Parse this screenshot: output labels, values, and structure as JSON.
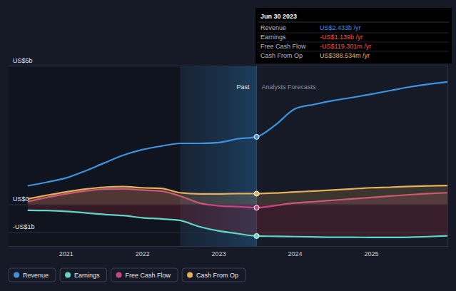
{
  "chart_data": {
    "type": "line",
    "x": [
      2020.5,
      2020.75,
      2021,
      2021.25,
      2021.5,
      2021.75,
      2022,
      2022.25,
      2022.5,
      2022.75,
      2023,
      2023.25,
      2023.5,
      2023.75,
      2024,
      2024.25,
      2024.5,
      2024.75,
      2025,
      2025.25,
      2025.5,
      2025.75,
      2026
    ],
    "xlim": [
      2020.25,
      2026
    ],
    "xticks": [
      2021,
      2022,
      2023,
      2024,
      2025
    ],
    "ylim": [
      -1.5,
      5
    ],
    "yticks": [
      {
        "value": 5,
        "label": "US$5b"
      },
      {
        "value": 0,
        "label": "US$0"
      },
      {
        "value": -1,
        "label": "-US$1b"
      }
    ],
    "grid": true,
    "series": [
      {
        "name": "Revenue",
        "color": "#3d93e0",
        "values": [
          0.67,
          0.8,
          0.95,
          1.2,
          1.49,
          1.77,
          1.97,
          2.1,
          2.2,
          2.2,
          2.23,
          2.36,
          2.433,
          2.87,
          3.44,
          3.6,
          3.74,
          3.85,
          3.97,
          4.1,
          4.23,
          4.33,
          4.41
        ]
      },
      {
        "name": "Earnings",
        "color": "#5fd6c8",
        "values": [
          -0.21,
          -0.22,
          -0.25,
          -0.3,
          -0.36,
          -0.4,
          -0.48,
          -0.52,
          -0.58,
          -0.8,
          -0.95,
          -1.05,
          -1.139,
          -1.15,
          -1.16,
          -1.17,
          -1.18,
          -1.18,
          -1.19,
          -1.19,
          -1.18,
          -1.16,
          -1.13
        ]
      },
      {
        "name": "Free Cash Flow",
        "color": "#c8457f",
        "values": [
          0.1,
          0.25,
          0.38,
          0.48,
          0.55,
          0.56,
          0.52,
          0.48,
          0.3,
          0.05,
          -0.05,
          -0.08,
          -0.119,
          -0.04,
          0.05,
          0.1,
          0.15,
          0.2,
          0.25,
          0.3,
          0.35,
          0.39,
          0.42
        ]
      },
      {
        "name": "Cash From Op",
        "color": "#e6b05a",
        "values": [
          0.2,
          0.33,
          0.45,
          0.55,
          0.62,
          0.64,
          0.6,
          0.58,
          0.42,
          0.38,
          0.38,
          0.39,
          0.389,
          0.41,
          0.45,
          0.48,
          0.52,
          0.56,
          0.6,
          0.62,
          0.65,
          0.67,
          0.68
        ]
      }
    ],
    "highlight": [
      2022.5,
      2023.5
    ],
    "annotations": [
      {
        "x": 2023.5,
        "text": "Past"
      },
      {
        "x": 2023.5,
        "text": "Analysts Forecasts"
      }
    ],
    "tooltip": {
      "title": "Jun 30 2023",
      "rows": [
        {
          "label": "Revenue",
          "value": "US$2.433b /yr"
        },
        {
          "label": "Earnings",
          "value": "-US$1.139b /yr"
        },
        {
          "label": "Free Cash Flow",
          "value": "-US$119.301m /yr"
        },
        {
          "label": "Cash From Op",
          "value": "US$388.534m /yr"
        }
      ]
    }
  }
}
